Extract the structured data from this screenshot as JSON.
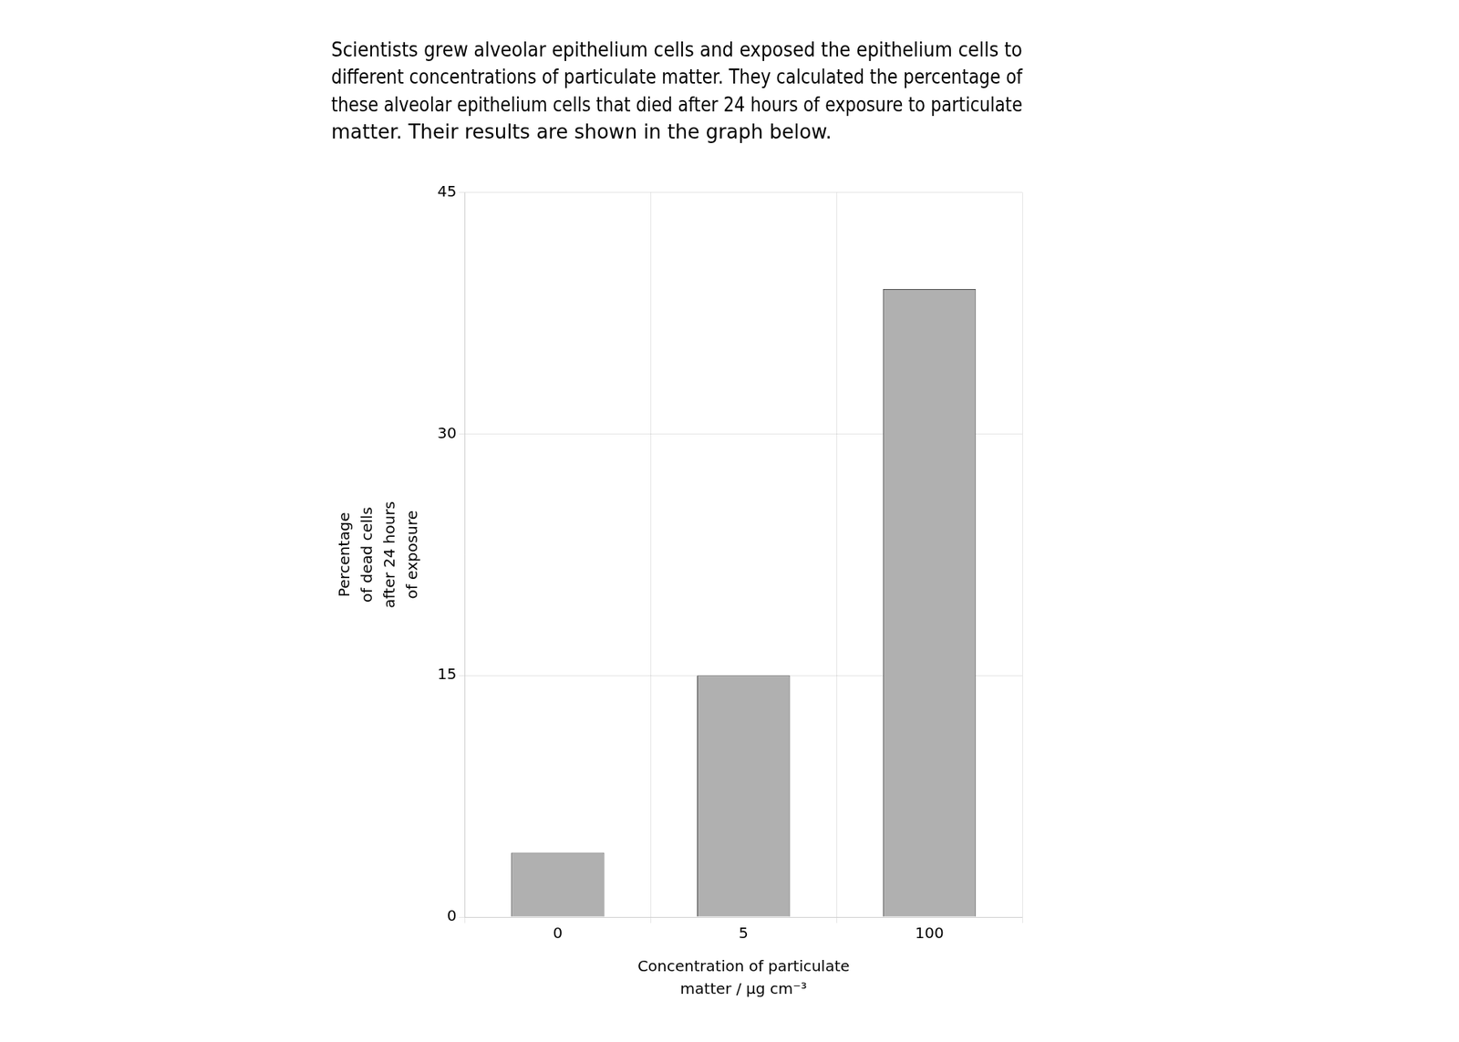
{
  "chart_data": {
    "type": "bar",
    "title": "Scientists grew alveolar epithelium cells and exposed the epithelium cells to\ndifferent concentrations of particulate matter. They calculated the percentage of\nthese alveolar epithelium cells that died after 24 hours of exposure to particulate\nmatter. Their results are shown in the graph below.",
    "x_label": "Concentration of particulate\nmatter / μg cm⁻³",
    "y_label": "Percentage\nof dead cells\nafter 24 hours\nof exposure",
    "categories": [
      "0",
      "5",
      "100"
    ],
    "values": [
      4,
      15,
      39
    ],
    "color": "#b0b0b0",
    "ylim": [
      0,
      45
    ],
    "yticks": [
      0,
      15,
      30,
      45
    ],
    "grid": true
  }
}
